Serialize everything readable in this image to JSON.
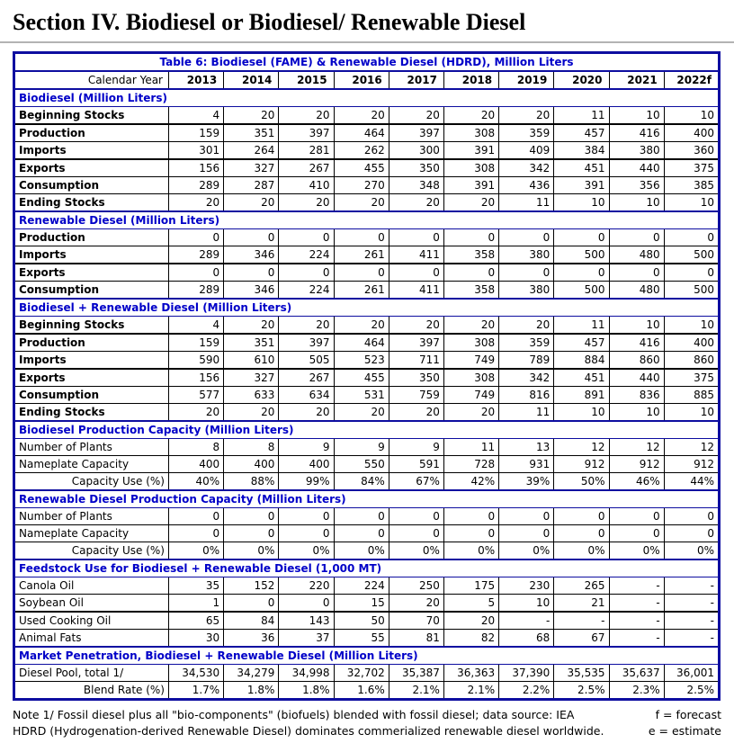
{
  "page_title": "Section IV. Biodiesel or Biodiesel/ Renewable Diesel",
  "colors": {
    "border_navy": "#0d0da0",
    "header_blue": "#0000c8",
    "text": "#000000",
    "heading_rule_gray": "#b3b3b3"
  },
  "table": {
    "title": "Table 6: Biodiesel (FAME) & Renewable Diesel (HDRD), Million Liters",
    "year_header_label": "Calendar Year",
    "years": [
      "2013",
      "2014",
      "2015",
      "2016",
      "2017",
      "2018",
      "2019",
      "2020",
      "2021",
      "2022f"
    ],
    "sections": [
      {
        "header": "Biodiesel (Million Liters)",
        "bold_labels": true,
        "rows": [
          {
            "label": "Beginning Stocks",
            "thick": true,
            "values": [
              "4",
              "20",
              "20",
              "20",
              "20",
              "20",
              "20",
              "11",
              "10",
              "10"
            ]
          },
          {
            "label": "Production",
            "values": [
              "159",
              "351",
              "397",
              "464",
              "397",
              "308",
              "359",
              "457",
              "416",
              "400"
            ]
          },
          {
            "label": "Imports",
            "thick": true,
            "values": [
              "301",
              "264",
              "281",
              "262",
              "300",
              "391",
              "409",
              "384",
              "380",
              "360"
            ]
          },
          {
            "label": "Exports",
            "values": [
              "156",
              "327",
              "267",
              "455",
              "350",
              "308",
              "342",
              "451",
              "440",
              "375"
            ]
          },
          {
            "label": "Consumption",
            "values": [
              "289",
              "287",
              "410",
              "270",
              "348",
              "391",
              "436",
              "391",
              "356",
              "385"
            ]
          },
          {
            "label": "Ending Stocks",
            "values": [
              "20",
              "20",
              "20",
              "20",
              "20",
              "20",
              "11",
              "10",
              "10",
              "10"
            ]
          }
        ]
      },
      {
        "header": "Renewable Diesel (Million Liters)",
        "bold_labels": true,
        "rows": [
          {
            "label": "Production",
            "values": [
              "0",
              "0",
              "0",
              "0",
              "0",
              "0",
              "0",
              "0",
              "0",
              "0"
            ]
          },
          {
            "label": "Imports",
            "thick": true,
            "values": [
              "289",
              "346",
              "224",
              "261",
              "411",
              "358",
              "380",
              "500",
              "480",
              "500"
            ]
          },
          {
            "label": "Exports",
            "values": [
              "0",
              "0",
              "0",
              "0",
              "0",
              "0",
              "0",
              "0",
              "0",
              "0"
            ]
          },
          {
            "label": "Consumption",
            "values": [
              "289",
              "346",
              "224",
              "261",
              "411",
              "358",
              "380",
              "500",
              "480",
              "500"
            ]
          }
        ]
      },
      {
        "header": "Biodiesel + Renewable Diesel (Million Liters)",
        "bold_labels": true,
        "rows": [
          {
            "label": "Beginning Stocks",
            "thick": true,
            "values": [
              "4",
              "20",
              "20",
              "20",
              "20",
              "20",
              "20",
              "11",
              "10",
              "10"
            ]
          },
          {
            "label": "Production",
            "values": [
              "159",
              "351",
              "397",
              "464",
              "397",
              "308",
              "359",
              "457",
              "416",
              "400"
            ]
          },
          {
            "label": "Imports",
            "thick": true,
            "values": [
              "590",
              "610",
              "505",
              "523",
              "711",
              "749",
              "789",
              "884",
              "860",
              "860"
            ]
          },
          {
            "label": "Exports",
            "values": [
              "156",
              "327",
              "267",
              "455",
              "350",
              "308",
              "342",
              "451",
              "440",
              "375"
            ]
          },
          {
            "label": "Consumption",
            "values": [
              "577",
              "633",
              "634",
              "531",
              "759",
              "749",
              "816",
              "891",
              "836",
              "885"
            ]
          },
          {
            "label": "Ending Stocks",
            "values": [
              "20",
              "20",
              "20",
              "20",
              "20",
              "20",
              "11",
              "10",
              "10",
              "10"
            ]
          }
        ]
      },
      {
        "header": "Biodiesel Production Capacity (Million Liters)",
        "bold_labels": false,
        "rows": [
          {
            "label": "Number of Plants",
            "values": [
              "8",
              "8",
              "9",
              "9",
              "9",
              "11",
              "13",
              "12",
              "12",
              "12"
            ]
          },
          {
            "label": "Nameplate Capacity",
            "values": [
              "400",
              "400",
              "400",
              "550",
              "591",
              "728",
              "931",
              "912",
              "912",
              "912"
            ]
          },
          {
            "label": "Capacity Use (%)",
            "align_right": true,
            "values": [
              "40%",
              "88%",
              "99%",
              "84%",
              "67%",
              "42%",
              "39%",
              "50%",
              "46%",
              "44%"
            ]
          }
        ]
      },
      {
        "header": "Renewable Diesel Production Capacity (Million Liters)",
        "bold_labels": false,
        "rows": [
          {
            "label": "Number of Plants",
            "values": [
              "0",
              "0",
              "0",
              "0",
              "0",
              "0",
              "0",
              "0",
              "0",
              "0"
            ]
          },
          {
            "label": "Nameplate Capacity",
            "values": [
              "0",
              "0",
              "0",
              "0",
              "0",
              "0",
              "0",
              "0",
              "0",
              "0"
            ]
          },
          {
            "label": "Capacity Use (%)",
            "align_right": true,
            "values": [
              "0%",
              "0%",
              "0%",
              "0%",
              "0%",
              "0%",
              "0%",
              "0%",
              "0%",
              "0%"
            ]
          }
        ]
      },
      {
        "header": "Feedstock Use for Biodiesel + Renewable Diesel (1,000 MT)",
        "bold_labels": false,
        "rows": [
          {
            "label": "Canola Oil",
            "values": [
              "35",
              "152",
              "220",
              "224",
              "250",
              "175",
              "230",
              "265",
              "-",
              "-"
            ]
          },
          {
            "label": "Soybean Oil",
            "thick": true,
            "values": [
              "1",
              "0",
              "0",
              "15",
              "20",
              "5",
              "10",
              "21",
              "-",
              "-"
            ]
          },
          {
            "label": "Used Cooking Oil",
            "values": [
              "65",
              "84",
              "143",
              "50",
              "70",
              "20",
              "-",
              "-",
              "-",
              "-"
            ]
          },
          {
            "label": "Animal Fats",
            "values": [
              "30",
              "36",
              "37",
              "55",
              "81",
              "82",
              "68",
              "67",
              "-",
              "-"
            ]
          }
        ]
      },
      {
        "header": "Market Penetration, Biodiesel + Renewable Diesel (Million Liters)",
        "bold_labels": false,
        "rows": [
          {
            "label": "Diesel Pool, total 1/",
            "values": [
              "34,530",
              "34,279",
              "34,998",
              "32,702",
              "35,387",
              "36,363",
              "37,390",
              "35,535",
              "35,637",
              "36,001"
            ]
          },
          {
            "label": "Blend Rate (%)",
            "align_right": true,
            "values": [
              "1.7%",
              "1.8%",
              "1.8%",
              "1.6%",
              "2.1%",
              "2.1%",
              "2.2%",
              "2.5%",
              "2.3%",
              "2.5%"
            ]
          }
        ]
      }
    ]
  },
  "footnotes": {
    "line1_left": "Note 1/ Fossil diesel plus all \"bio-components\" (biofuels) blended with fossil diesel; data source: IEA",
    "line1_right": "f = forecast",
    "line2_left": "HDRD (Hydrogenation-derived Renewable Diesel) dominates commerialized renewable diesel worldwide.",
    "line2_right": "e = estimate"
  }
}
